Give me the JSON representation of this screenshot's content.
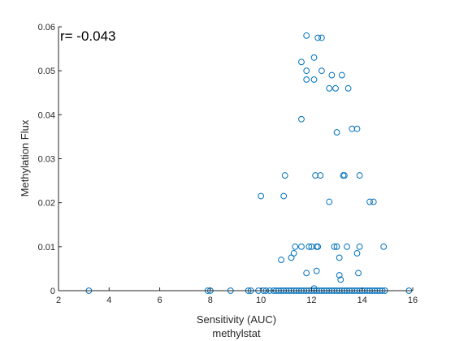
{
  "chart_data": {
    "type": "scatter",
    "xlabel": "Sensitivity (AUC)",
    "ylabel": "Methylation Flux",
    "subtitle": "methylstat",
    "annotation": "r= -0.043",
    "xlim": [
      2,
      16
    ],
    "ylim": [
      0,
      0.06
    ],
    "xticks": [
      "2",
      "4",
      "6",
      "8",
      "10",
      "12",
      "14",
      "16"
    ],
    "yticks": [
      "0",
      "0.01",
      "0.02",
      "0.03",
      "0.04",
      "0.05",
      "0.06"
    ],
    "grid": false,
    "colors": {
      "marker": "#0072BD",
      "axis": "#262626"
    },
    "points": [
      [
        3.2,
        0
      ],
      [
        7.9,
        0
      ],
      [
        8.0,
        0
      ],
      [
        8.8,
        0
      ],
      [
        9.5,
        0
      ],
      [
        9.6,
        0
      ],
      [
        9.9,
        0
      ],
      [
        10.1,
        0
      ],
      [
        10.2,
        0
      ],
      [
        10.35,
        0
      ],
      [
        10.5,
        0
      ],
      [
        10.6,
        0
      ],
      [
        10.7,
        0
      ],
      [
        10.8,
        0
      ],
      [
        10.9,
        0
      ],
      [
        11.0,
        0
      ],
      [
        11.1,
        0
      ],
      [
        11.2,
        0
      ],
      [
        11.3,
        0
      ],
      [
        11.4,
        0
      ],
      [
        11.5,
        0
      ],
      [
        11.6,
        0
      ],
      [
        11.7,
        0
      ],
      [
        11.8,
        0
      ],
      [
        11.9,
        0
      ],
      [
        12.0,
        0
      ],
      [
        12.1,
        0
      ],
      [
        12.2,
        0
      ],
      [
        12.3,
        0
      ],
      [
        12.4,
        0
      ],
      [
        12.5,
        0
      ],
      [
        12.6,
        0
      ],
      [
        12.7,
        0
      ],
      [
        12.8,
        0
      ],
      [
        12.9,
        0
      ],
      [
        13.0,
        0
      ],
      [
        13.1,
        0
      ],
      [
        13.2,
        0
      ],
      [
        13.3,
        0
      ],
      [
        13.4,
        0
      ],
      [
        13.5,
        0
      ],
      [
        13.6,
        0
      ],
      [
        13.7,
        0
      ],
      [
        13.8,
        0
      ],
      [
        13.9,
        0
      ],
      [
        14.0,
        0
      ],
      [
        14.1,
        0
      ],
      [
        14.2,
        0
      ],
      [
        14.3,
        0
      ],
      [
        14.4,
        0
      ],
      [
        14.5,
        0
      ],
      [
        14.6,
        0
      ],
      [
        14.7,
        0
      ],
      [
        14.8,
        0
      ],
      [
        14.9,
        0
      ],
      [
        15.85,
        0
      ],
      [
        12.1,
        0.0005
      ],
      [
        13.15,
        0.0025
      ],
      [
        13.1,
        0.0035
      ],
      [
        11.8,
        0.004
      ],
      [
        12.2,
        0.0045
      ],
      [
        13.85,
        0.004
      ],
      [
        10.8,
        0.007
      ],
      [
        11.2,
        0.0075
      ],
      [
        11.3,
        0.0085
      ],
      [
        11.35,
        0.01
      ],
      [
        11.6,
        0.01
      ],
      [
        11.9,
        0.01
      ],
      [
        12.0,
        0.01
      ],
      [
        12.2,
        0.01
      ],
      [
        12.25,
        0.01
      ],
      [
        12.9,
        0.01
      ],
      [
        13.0,
        0.01
      ],
      [
        13.1,
        0.0075
      ],
      [
        13.4,
        0.01
      ],
      [
        13.8,
        0.0085
      ],
      [
        13.9,
        0.01
      ],
      [
        14.85,
        0.01
      ],
      [
        10.0,
        0.0215
      ],
      [
        10.9,
        0.0215
      ],
      [
        12.7,
        0.0202
      ],
      [
        14.3,
        0.0202
      ],
      [
        14.45,
        0.0202
      ],
      [
        10.95,
        0.0262
      ],
      [
        12.15,
        0.0262
      ],
      [
        12.35,
        0.0262
      ],
      [
        13.25,
        0.0262
      ],
      [
        13.3,
        0.0262
      ],
      [
        13.9,
        0.0262
      ],
      [
        13.0,
        0.036
      ],
      [
        13.6,
        0.0368
      ],
      [
        13.8,
        0.0368
      ],
      [
        11.6,
        0.039
      ],
      [
        12.7,
        0.046
      ],
      [
        12.95,
        0.046
      ],
      [
        13.45,
        0.046
      ],
      [
        11.8,
        0.048
      ],
      [
        12.1,
        0.048
      ],
      [
        11.8,
        0.05
      ],
      [
        12.4,
        0.05
      ],
      [
        12.8,
        0.049
      ],
      [
        13.2,
        0.049
      ],
      [
        11.6,
        0.052
      ],
      [
        12.1,
        0.053
      ],
      [
        11.8,
        0.058
      ],
      [
        12.25,
        0.0575
      ],
      [
        12.4,
        0.0575
      ]
    ]
  }
}
